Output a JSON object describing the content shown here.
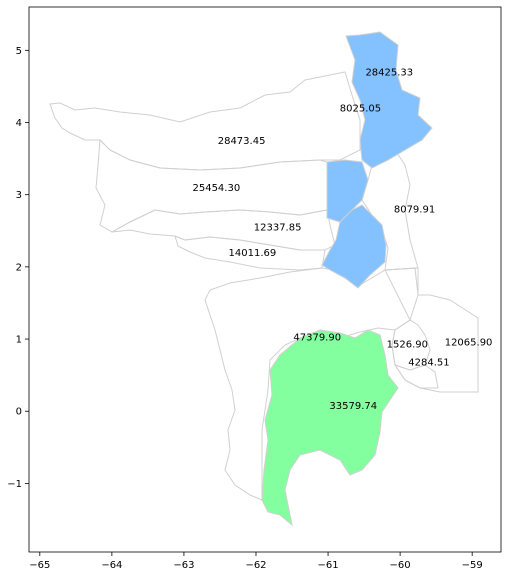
{
  "chart_data": {
    "type": "choropleth-map",
    "title": "",
    "xlabel": "",
    "ylabel": "",
    "xlim": [
      -65.15,
      -58.6
    ],
    "ylim": [
      -1.95,
      5.6
    ],
    "x_ticks": [
      -65,
      -64,
      -63,
      -62,
      -61,
      -60,
      -59
    ],
    "y_ticks": [
      5,
      4,
      3,
      2,
      1,
      0,
      -1
    ],
    "x_tick_labels": [
      "−65",
      "−64",
      "−63",
      "−62",
      "−61",
      "−60",
      "−59"
    ],
    "y_tick_labels": [
      "5",
      "4",
      "3",
      "2",
      "1",
      "0",
      "−1"
    ],
    "grid": false,
    "highlight_colors": {
      "blue": "#84c1ff",
      "green": "#84ff9f"
    },
    "regions": [
      {
        "label": "28425.33",
        "x": -60.15,
        "y": 4.7,
        "fill": "blue"
      },
      {
        "label": "8025.05",
        "x": -60.55,
        "y": 4.2,
        "fill": "blue"
      },
      {
        "label": "28473.45",
        "x": -62.2,
        "y": 3.75,
        "fill": "none"
      },
      {
        "label": "25454.30",
        "x": -62.55,
        "y": 3.1,
        "fill": "none"
      },
      {
        "label": "8079.91",
        "x": -59.8,
        "y": 2.8,
        "fill": "blue"
      },
      {
        "label": "12337.85",
        "x": -61.7,
        "y": 2.55,
        "fill": "none"
      },
      {
        "label": "14011.69",
        "x": -62.05,
        "y": 2.2,
        "fill": "none"
      },
      {
        "label": "47379.90",
        "x": -61.15,
        "y": 1.03,
        "fill": "none"
      },
      {
        "label": "1526.90",
        "x": -59.9,
        "y": 0.93,
        "fill": "none"
      },
      {
        "label": "12065.90",
        "x": -59.05,
        "y": 0.96,
        "fill": "none"
      },
      {
        "label": "4284.51",
        "x": -59.6,
        "y": 0.68,
        "fill": "none"
      },
      {
        "label": "33579.74",
        "x": -60.65,
        "y": 0.08,
        "fill": "green"
      }
    ]
  }
}
